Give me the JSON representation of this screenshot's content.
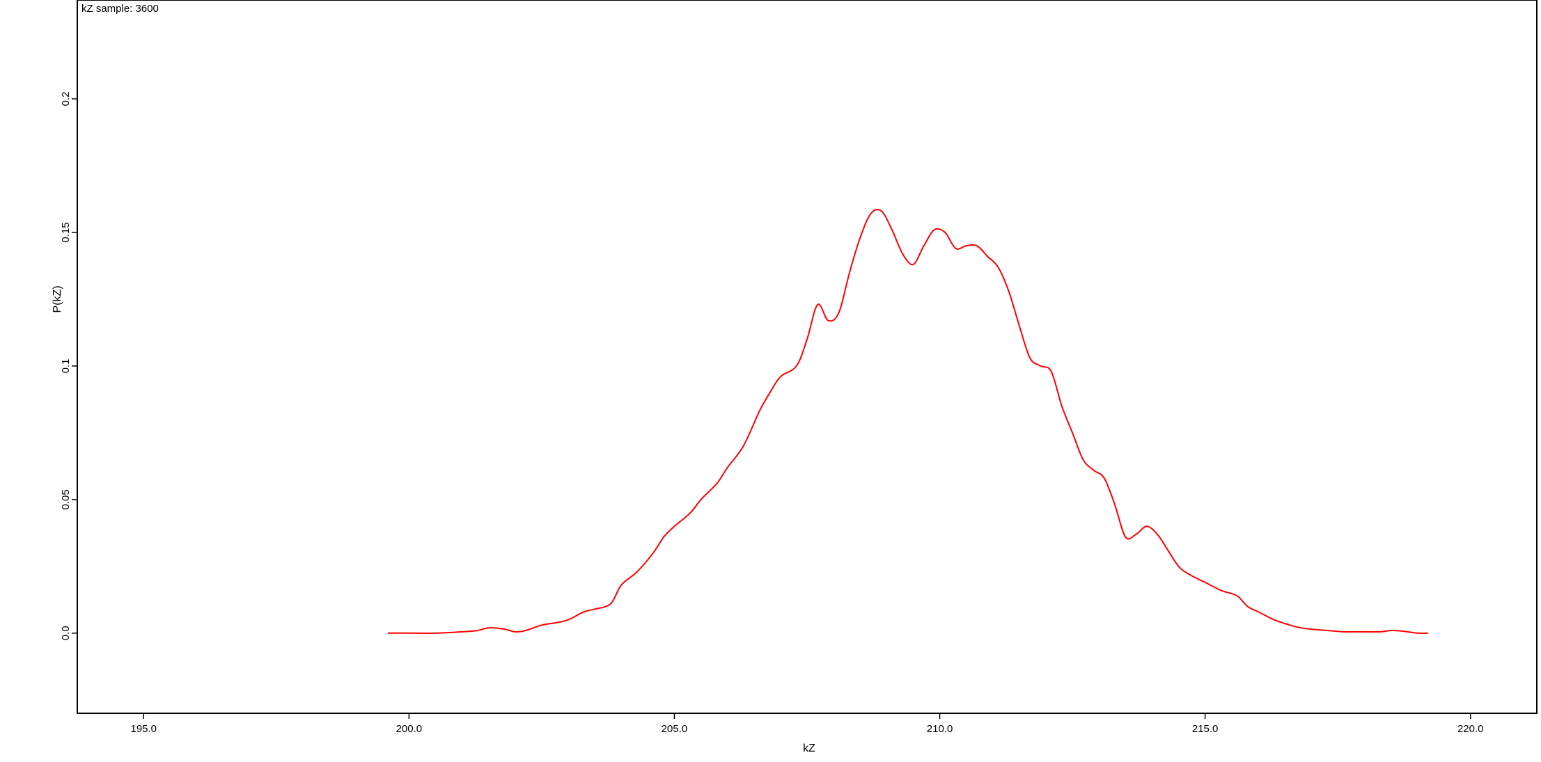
{
  "chart_data": {
    "type": "line",
    "title": "",
    "annotation": "kZ sample: 3600",
    "xlabel": "kZ",
    "ylabel": "P(kZ)",
    "xlim": [
      193.75,
      221.25
    ],
    "ylim": [
      -0.03,
      0.237
    ],
    "x_ticks": [
      195,
      200,
      205,
      210,
      215,
      220
    ],
    "x_tick_labels": [
      "195.0",
      "200.0",
      "205.0",
      "210.0",
      "215.0",
      "220.0"
    ],
    "y_ticks": [
      0,
      0.05,
      0.1,
      0.15,
      0.2
    ],
    "y_tick_labels": [
      "0.0",
      "0.05",
      "0.1",
      "0.15",
      "0.2"
    ],
    "grid": false,
    "legend": "none",
    "series": [
      {
        "color": "#ff0000",
        "x": [
          199.6,
          200.0,
          200.5,
          201.0,
          201.3,
          201.5,
          201.8,
          202.0,
          202.2,
          202.5,
          202.8,
          203.0,
          203.3,
          203.5,
          203.8,
          204.0,
          204.3,
          204.6,
          204.8,
          205.0,
          205.3,
          205.5,
          205.8,
          206.0,
          206.3,
          206.6,
          206.8,
          207.0,
          207.3,
          207.5,
          207.7,
          207.9,
          208.1,
          208.3,
          208.5,
          208.7,
          208.9,
          209.1,
          209.3,
          209.5,
          209.7,
          209.9,
          210.1,
          210.3,
          210.5,
          210.7,
          210.9,
          211.1,
          211.3,
          211.5,
          211.7,
          211.9,
          212.1,
          212.3,
          212.5,
          212.7,
          212.9,
          213.1,
          213.3,
          213.5,
          213.7,
          213.9,
          214.1,
          214.3,
          214.5,
          214.7,
          215.0,
          215.3,
          215.6,
          215.8,
          216.0,
          216.3,
          216.6,
          216.8,
          217.0,
          217.3,
          217.6,
          217.8,
          218.0,
          218.3,
          218.5,
          218.7,
          219.0,
          219.2
        ],
        "values": [
          0.0,
          0.0,
          0.0,
          0.0005,
          0.001,
          0.002,
          0.0015,
          0.0005,
          0.001,
          0.003,
          0.004,
          0.005,
          0.008,
          0.009,
          0.011,
          0.018,
          0.023,
          0.03,
          0.036,
          0.04,
          0.045,
          0.05,
          0.056,
          0.062,
          0.07,
          0.083,
          0.09,
          0.096,
          0.1,
          0.11,
          0.123,
          0.117,
          0.12,
          0.135,
          0.148,
          0.157,
          0.158,
          0.151,
          0.142,
          0.138,
          0.145,
          0.151,
          0.15,
          0.144,
          0.145,
          0.145,
          0.141,
          0.137,
          0.128,
          0.115,
          0.103,
          0.1,
          0.098,
          0.085,
          0.075,
          0.065,
          0.061,
          0.058,
          0.048,
          0.036,
          0.037,
          0.04,
          0.037,
          0.031,
          0.025,
          0.022,
          0.019,
          0.016,
          0.014,
          0.01,
          0.008,
          0.005,
          0.003,
          0.002,
          0.0015,
          0.001,
          0.0005,
          0.0005,
          0.0005,
          0.0005,
          0.001,
          0.0008,
          0.0,
          0.0
        ]
      }
    ]
  }
}
